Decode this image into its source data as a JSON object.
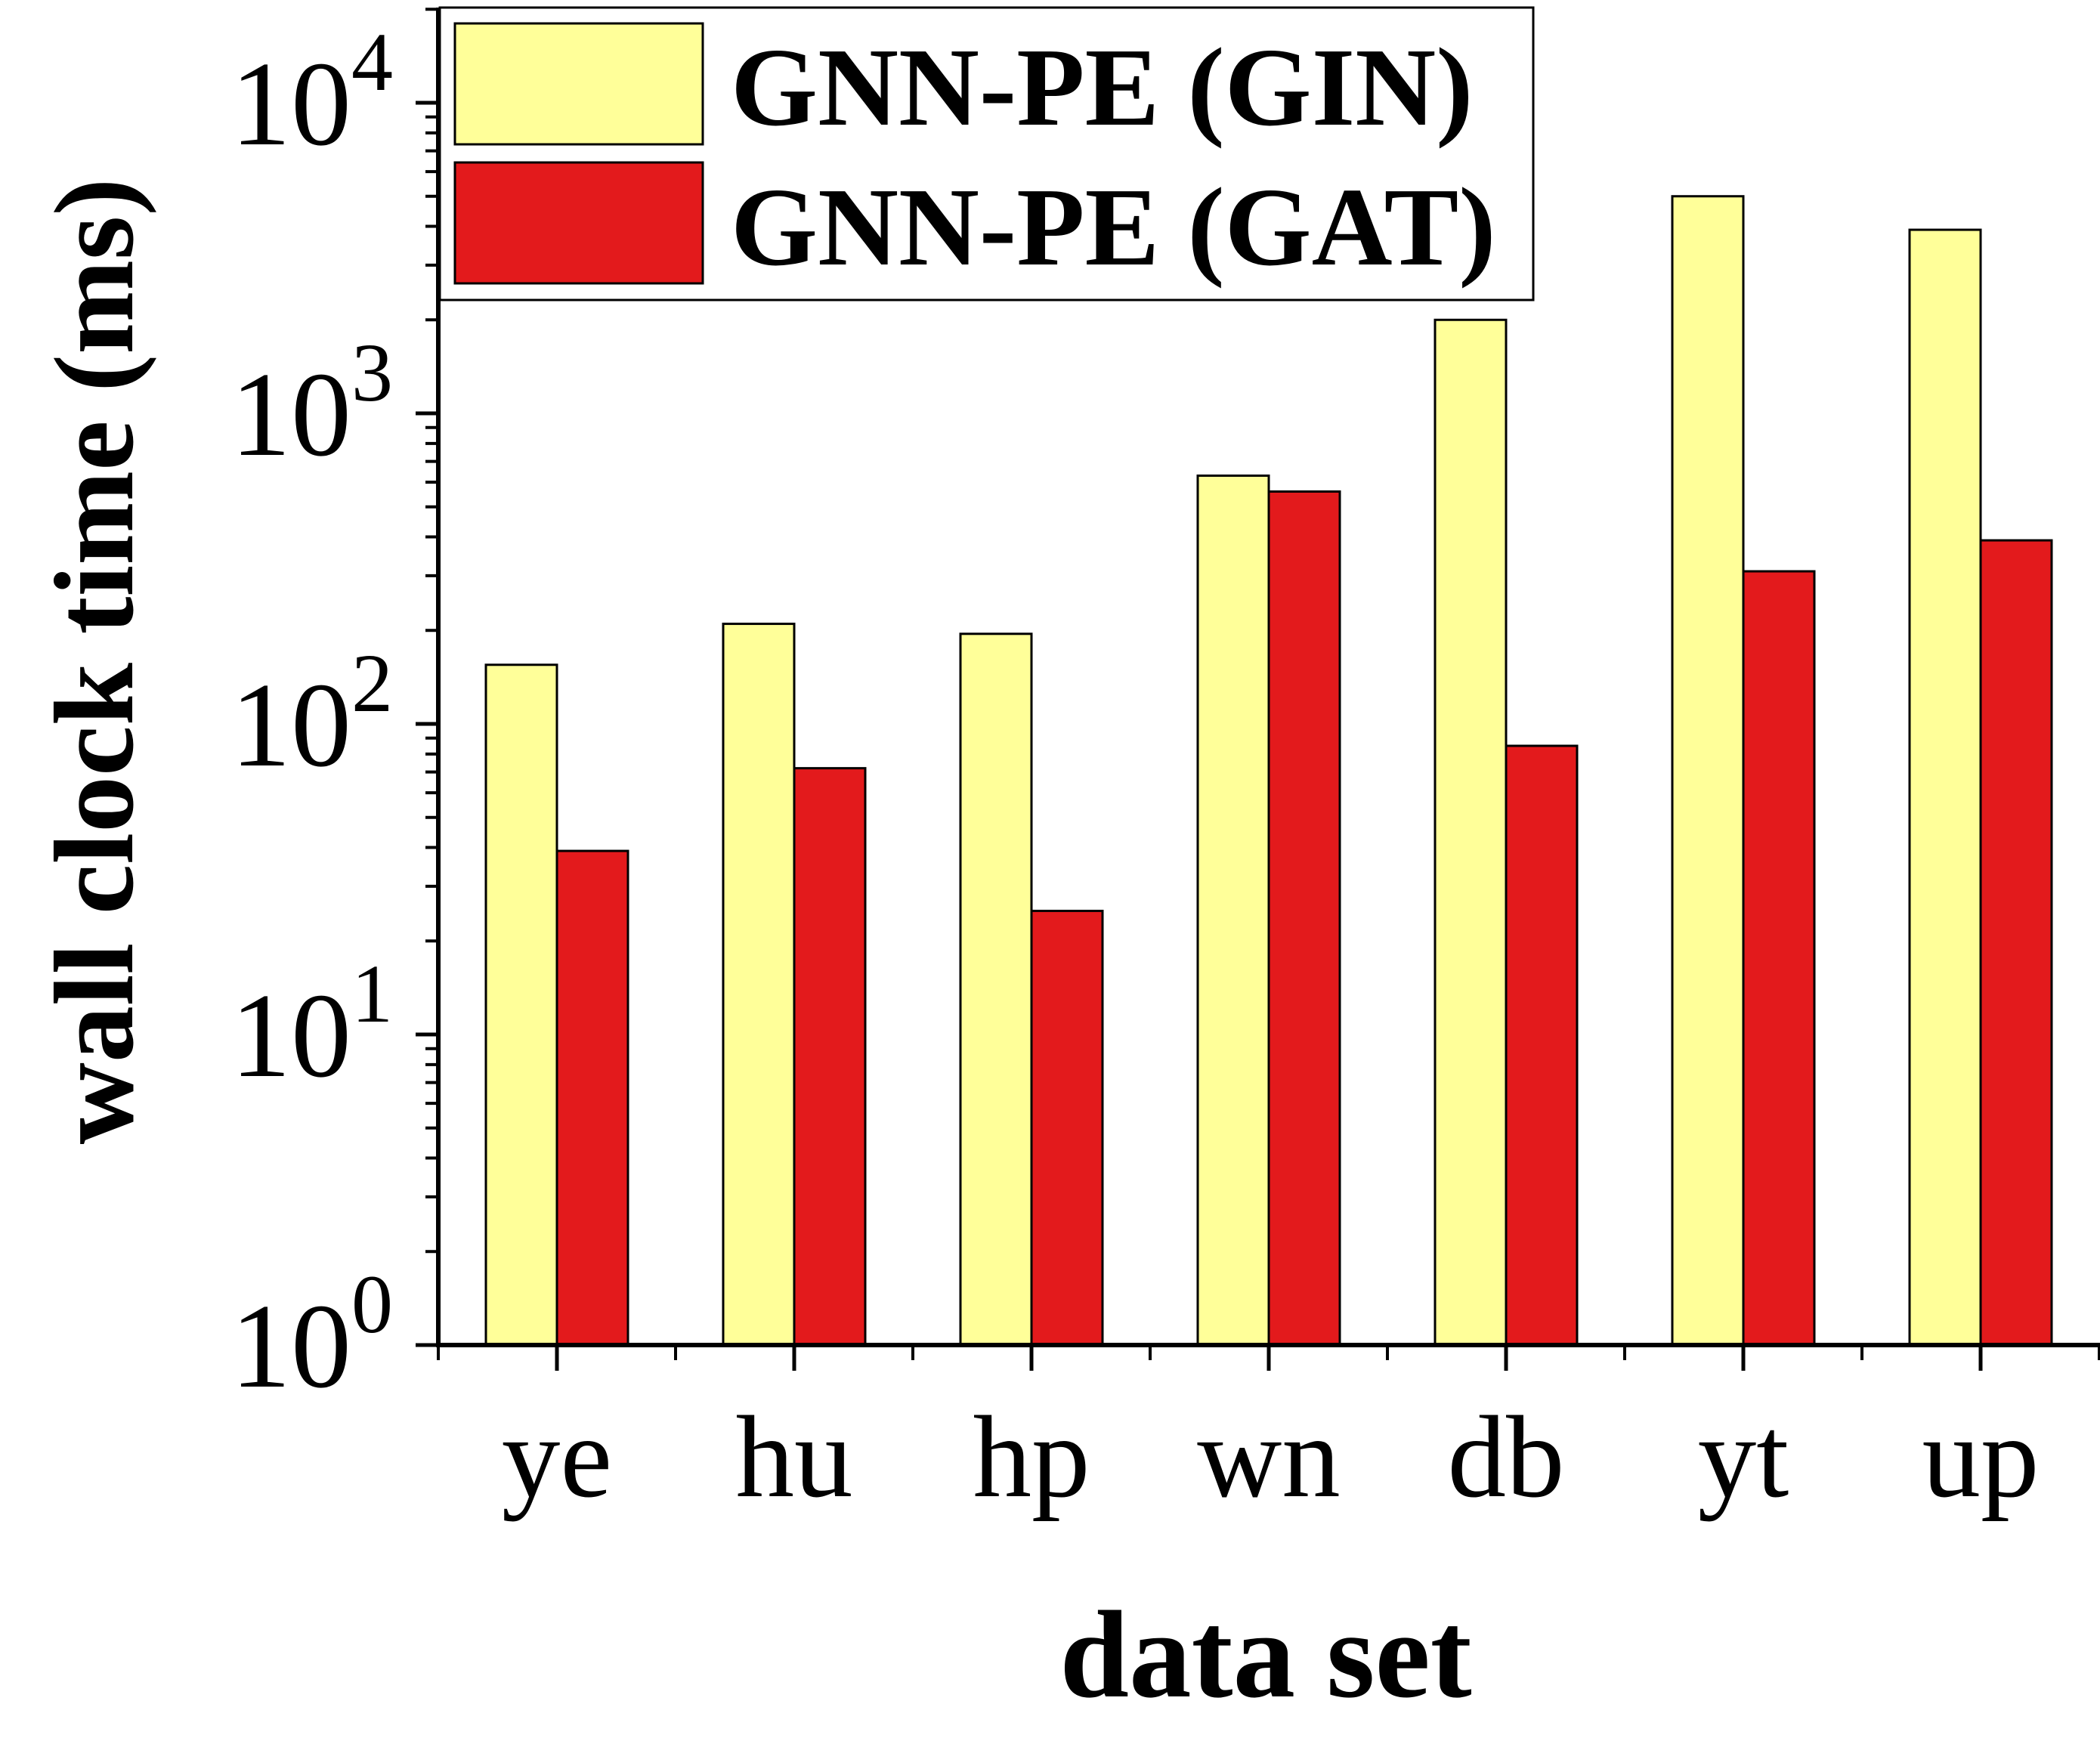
{
  "chart_data": {
    "type": "bar",
    "scale": "log",
    "ylabel": "wall clock time (ms)",
    "xlabel": "data set",
    "categories": [
      "ye",
      "hu",
      "hp",
      "wn",
      "db",
      "yt",
      "up"
    ],
    "series": [
      {
        "name": "GNN-PE (GIN)",
        "color": "#ffff99",
        "values": [
          155,
          210,
          195,
          630,
          2000,
          5000,
          3900
        ]
      },
      {
        "name": "GNN-PE (GAT)",
        "color": "#e31a1c",
        "values": [
          39,
          72,
          25,
          560,
          85,
          310,
          390
        ]
      }
    ],
    "ylim": [
      1,
      20000
    ],
    "major_ticks": [
      {
        "value": 1,
        "base": "10",
        "exp": "0"
      },
      {
        "value": 10,
        "base": "10",
        "exp": "1"
      },
      {
        "value": 100,
        "base": "10",
        "exp": "2"
      },
      {
        "value": 1000,
        "base": "10",
        "exp": "3"
      },
      {
        "value": 10000,
        "base": "10",
        "exp": "4"
      }
    ],
    "legend_position": "top-left",
    "grid": false
  }
}
